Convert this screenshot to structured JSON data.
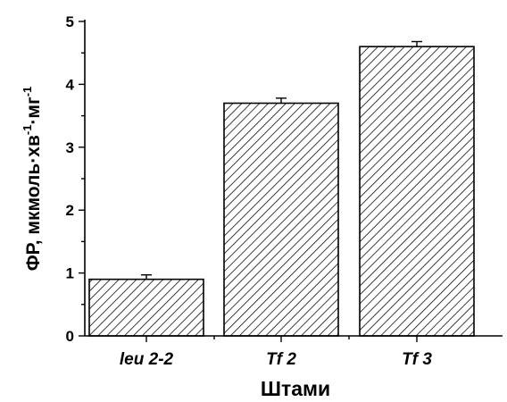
{
  "chart_data": {
    "type": "bar",
    "categories": [
      "leu 2-2",
      "Tf 2",
      "Tf 3"
    ],
    "values": [
      0.9,
      3.7,
      4.6
    ],
    "errors": [
      0.07,
      0.08,
      0.08
    ],
    "xlabel": "Штами",
    "ylabel": {
      "parts": [
        {
          "text": "ФР, мкмоль·хв",
          "sup": false
        },
        {
          "text": "-1",
          "sup": true
        },
        {
          "text": "·мг",
          "sup": false
        },
        {
          "text": "-1",
          "sup": true
        }
      ]
    },
    "ylim": [
      0,
      5
    ],
    "yticks": [
      "0",
      "1",
      "2",
      "3",
      "4",
      "5"
    ],
    "bar_fill": "diagonal-hatch",
    "colors": {
      "bar_stroke": "#000000",
      "hatch": "#000000",
      "background": "#ffffff"
    }
  }
}
